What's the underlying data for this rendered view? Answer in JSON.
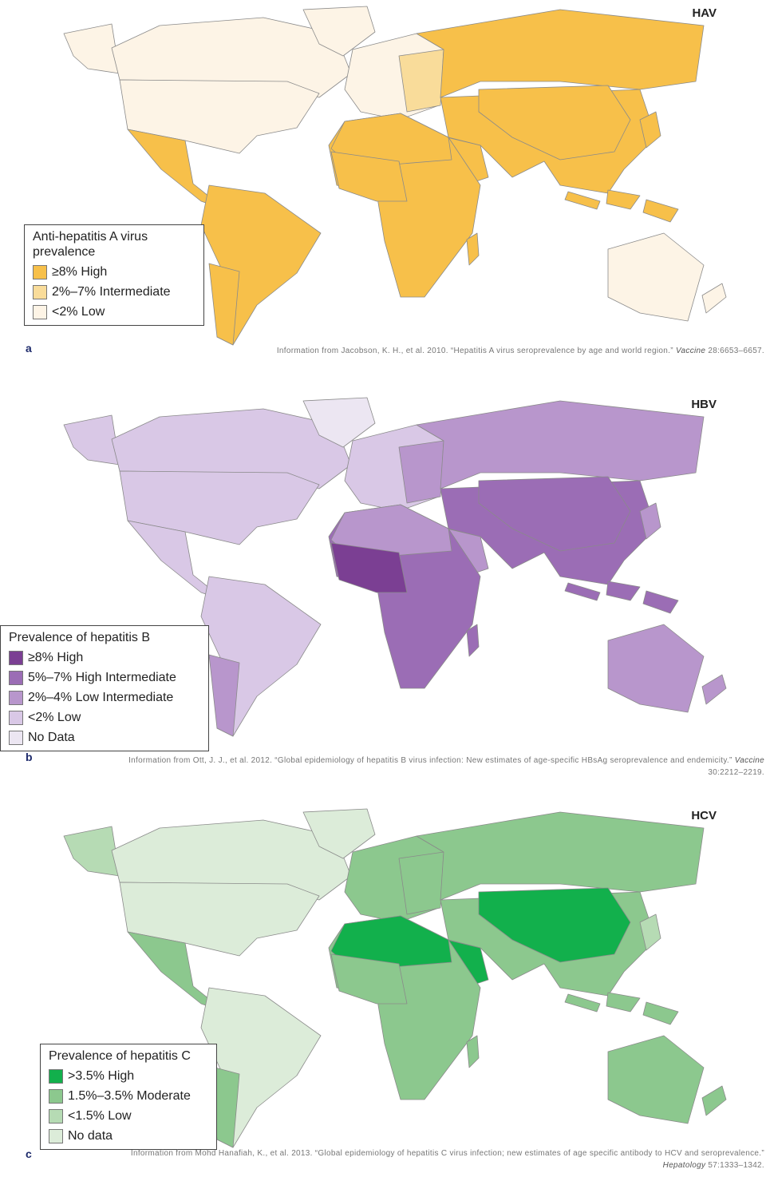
{
  "panels": [
    {
      "title": "HAV",
      "letter": "a",
      "legend": {
        "title": "Anti-hepatitis A virus prevalence",
        "items": [
          {
            "label": "≥8% High",
            "color": "#f7c04a"
          },
          {
            "label": "2%–7% Intermediate",
            "color": "#f9dc9a"
          },
          {
            "label": "<2% Low",
            "color": "#fdf4e6"
          }
        ]
      },
      "source": {
        "text": "Information from Jacobson, K. H., et al. 2010. “Hepatitis A virus seroprevalence by age and world region.”",
        "journal": "Vaccine",
        "citation": "28:6653–6657."
      }
    },
    {
      "title": "HBV",
      "letter": "b",
      "legend": {
        "title": "Prevalence of hepatitis B",
        "items": [
          {
            "label": "≥8% High",
            "color": "#7b3f93"
          },
          {
            "label": "5%–7% High Intermediate",
            "color": "#9b6db5"
          },
          {
            "label": "2%–4% Low Intermediate",
            "color": "#b896cc"
          },
          {
            "label": "<2% Low",
            "color": "#d9c8e6"
          },
          {
            "label": "No Data",
            "color": "#ece6f2"
          }
        ]
      },
      "source": {
        "text": "Information from Ott, J. J., et al. 2012. “Global epidemiology of hepatitis B virus infection: New estimates of age-specific HBsAg seroprevalence and endemicity.”",
        "journal": "Vaccine",
        "citation": "30:2212–2219."
      }
    },
    {
      "title": "HCV",
      "letter": "c",
      "legend": {
        "title": "Prevalence of hepatitis C",
        "items": [
          {
            "label": ">3.5% High",
            "color": "#12b04c"
          },
          {
            "label": "1.5%–3.5% Moderate",
            "color": "#8cc88e"
          },
          {
            "label": "<1.5% Low",
            "color": "#b6dbb4"
          },
          {
            "label": "No data",
            "color": "#dcecd9"
          }
        ]
      },
      "source": {
        "text": "Information from Mohd Hanafiah, K., et al. 2013. “Global epidemiology of hepatitis C virus infection; new estimates of age specific antibody to HCV and seroprevalence.”",
        "journal": "Hepatology",
        "citation": "57:1333–1342."
      }
    }
  ]
}
